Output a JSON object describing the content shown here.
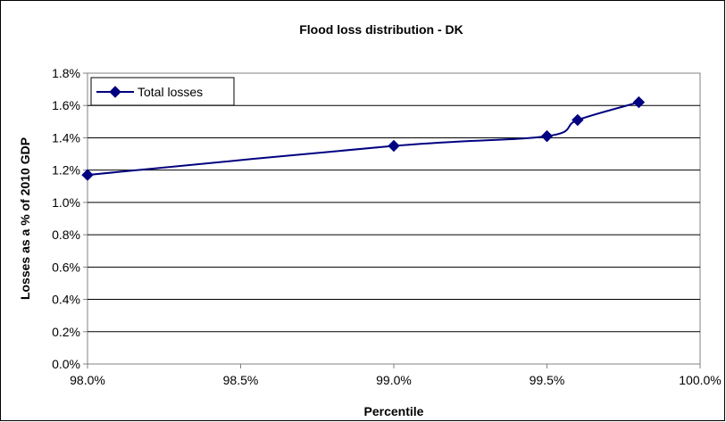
{
  "chart_data": {
    "type": "line",
    "title": "Flood loss distribution - DK",
    "xlabel": "Percentile",
    "ylabel": "Losses as a % of 2010 GDP",
    "xlim": [
      98.0,
      100.0
    ],
    "ylim": [
      0.0,
      1.8
    ],
    "xticks": [
      "98.0%",
      "98.5%",
      "99.0%",
      "99.5%",
      "100.0%"
    ],
    "yticks": [
      "0.0%",
      "0.2%",
      "0.4%",
      "0.6%",
      "0.8%",
      "1.0%",
      "1.2%",
      "1.4%",
      "1.6%",
      "1.8%"
    ],
    "grid": "horizontal",
    "legend_position": "top-left",
    "series": [
      {
        "name": "Total losses",
        "color": "#000080",
        "marker": "diamond",
        "x": [
          98.0,
          99.0,
          99.5,
          99.6,
          99.8
        ],
        "y": [
          1.17,
          1.35,
          1.41,
          1.51,
          1.62
        ]
      }
    ]
  }
}
